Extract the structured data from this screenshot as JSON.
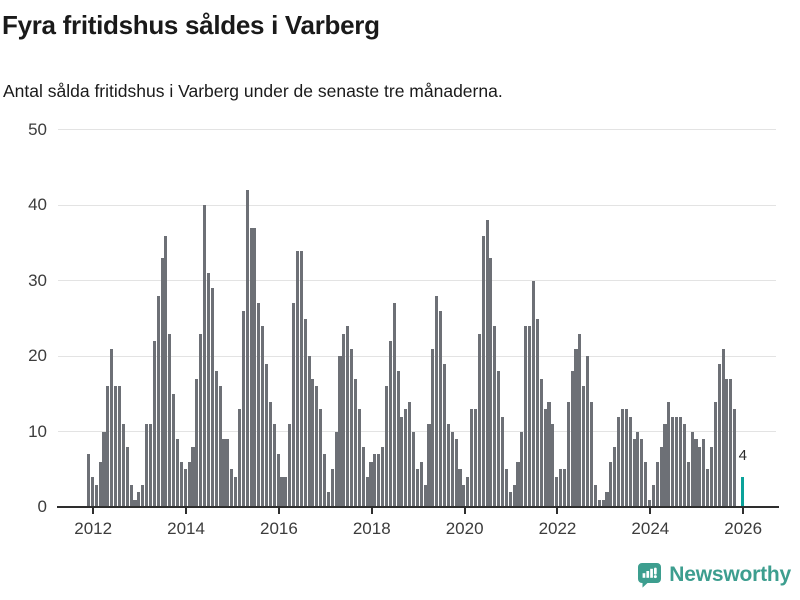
{
  "header": {
    "title": "Fyra fritidshus såldes i Varberg",
    "subtitle": "Antal sålda fritidshus i Varberg under de senaste tre månaderna."
  },
  "annotation": {
    "last_value_label": "4"
  },
  "footer": {
    "brand": "Newsworthy",
    "brand_color": "#3d9e8f"
  },
  "colors": {
    "bar": "#6d7076",
    "highlight": "#0aa29a",
    "grid": "#e3e3e3",
    "axis": "#2e2e2e",
    "tick_text": "#3c3c3c"
  },
  "chart_data": {
    "type": "bar",
    "title": "Fyra fritidshus såldes i Varberg",
    "subtitle": "Antal sålda fritidshus i Varberg under de senaste tre månaderna.",
    "frequency": "monthly",
    "start_month": "2011-12",
    "end_month": "2026-01",
    "ylim": [
      0,
      50
    ],
    "y_ticks": [
      0,
      10,
      20,
      30,
      40,
      50
    ],
    "x_tick_labels": [
      "2012",
      "2014",
      "2016",
      "2018",
      "2020",
      "2022",
      "2024",
      "2026"
    ],
    "grid": true,
    "legend": false,
    "highlight_last_bar": true,
    "last_bar_label": "4",
    "values": [
      7,
      4,
      3,
      6,
      10,
      16,
      21,
      16,
      16,
      11,
      8,
      3,
      1,
      2,
      3,
      11,
      11,
      22,
      28,
      33,
      36,
      23,
      15,
      9,
      6,
      5,
      6,
      8,
      17,
      23,
      40,
      31,
      29,
      18,
      16,
      9,
      9,
      5,
      4,
      13,
      26,
      42,
      37,
      37,
      27,
      24,
      19,
      14,
      11,
      7,
      4,
      4,
      11,
      27,
      34,
      34,
      25,
      20,
      17,
      16,
      13,
      7,
      2,
      5,
      10,
      20,
      23,
      24,
      21,
      17,
      13,
      8,
      4,
      6,
      7,
      7,
      8,
      16,
      22,
      27,
      18,
      12,
      13,
      14,
      10,
      5,
      6,
      3,
      11,
      21,
      28,
      26,
      19,
      11,
      10,
      9,
      5,
      3,
      4,
      13,
      13,
      23,
      36,
      38,
      33,
      24,
      18,
      12,
      5,
      2,
      3,
      6,
      10,
      24,
      24,
      30,
      25,
      17,
      13,
      14,
      11,
      4,
      5,
      5,
      14,
      18,
      21,
      23,
      16,
      20,
      14,
      3,
      1,
      1,
      2,
      6,
      8,
      12,
      13,
      13,
      12,
      9,
      10,
      9,
      6,
      1,
      3,
      6,
      8,
      11,
      14,
      12,
      12,
      12,
      11,
      6,
      10,
      9,
      8,
      9,
      5,
      8,
      14,
      19,
      21,
      17,
      17,
      13,
      null,
      4
    ]
  }
}
